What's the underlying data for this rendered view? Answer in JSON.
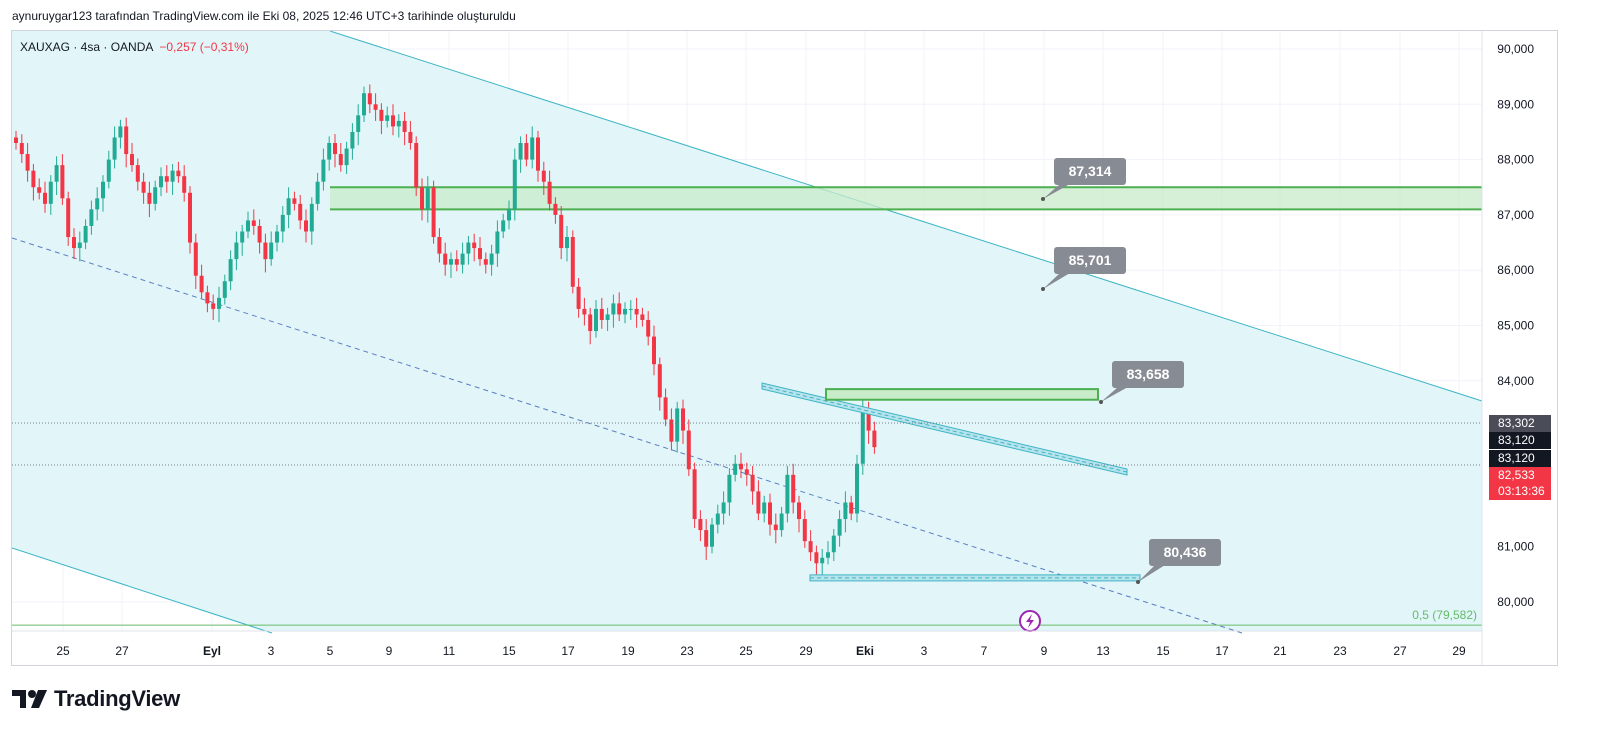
{
  "caption": "aynuruygar123 tarafından TradingView.com ile Eki 08, 2025 12:46 UTC+3 tarihinde oluşturuldu",
  "legend": {
    "symbol": "XAUXAG · 4sa · OANDA",
    "change": "−0,257 (−0,31%)"
  },
  "brand": {
    "name": "TradingView",
    "logo": "tradingview-logo-icon"
  },
  "colors": {
    "up": "#22ab94",
    "down": "#f23645",
    "channel_fill": "#e2f6f9",
    "channel_line": "#3cb4c4",
    "zone": "#4caf50",
    "callout": "#878b94"
  },
  "price_labels": [
    {
      "text": "83,302",
      "bg": "#4a4d57"
    },
    {
      "text": "83,120",
      "bg": "#131722"
    },
    {
      "text": "83,120",
      "bg": "#131722"
    },
    {
      "text": "82,533",
      "bg": "#f23645"
    },
    {
      "text": "03:13:36",
      "bg": "#f23645"
    }
  ],
  "callouts": [
    "87,314",
    "85,701",
    "83,658",
    "80,436"
  ],
  "fib_label": "0,5 (79,582)",
  "chart_data": {
    "type": "candlestick",
    "symbol": "XAUXAG",
    "timeframe": "4sa",
    "source": "OANDA",
    "ylim": [
      79.5,
      90.2
    ],
    "y_ticks": [
      "80,000",
      "81,000",
      "83,000",
      "84,000",
      "85,000",
      "86,000",
      "87,000",
      "88,000",
      "89,000",
      "90,000"
    ],
    "x_ticks": [
      "25",
      "27",
      "Eyl",
      "3",
      "5",
      "9",
      "11",
      "15",
      "17",
      "19",
      "23",
      "25",
      "29",
      "Eki",
      "3",
      "7",
      "9",
      "13",
      "15",
      "17",
      "21",
      "23",
      "27",
      "29"
    ],
    "last_price": 82.533,
    "series": [
      {
        "closes": [
          88.3,
          88.1,
          87.8,
          87.5,
          87.4,
          87.2,
          87.6,
          87.9,
          87.3,
          86.6,
          86.4,
          86.5,
          86.8,
          87.1,
          87.3,
          87.6,
          88.0,
          88.4,
          88.6,
          88.1,
          87.9,
          87.6,
          87.4,
          87.2,
          87.5,
          87.7,
          87.6,
          87.8,
          87.7,
          87.4,
          86.5,
          85.9,
          85.6,
          85.4,
          85.3,
          85.5,
          85.8,
          86.2,
          86.5,
          86.7,
          86.9,
          86.8,
          86.5,
          86.2,
          86.5,
          86.7,
          87.0,
          87.3,
          87.2,
          86.9,
          86.7,
          87.2,
          87.6,
          88.0,
          88.3,
          88.1,
          87.9,
          88.2,
          88.5,
          88.8,
          89.2,
          89.0,
          88.9,
          88.7,
          88.8,
          88.6,
          88.7,
          88.5,
          88.3,
          87.5,
          87.1,
          87.5,
          86.6,
          86.3,
          86.1,
          86.2,
          86.1,
          86.3,
          86.5,
          86.4,
          86.2,
          86.1,
          86.3,
          86.7,
          86.9,
          87.1,
          88.0,
          88.3,
          88.0,
          88.4,
          87.8,
          87.6,
          87.2,
          87.0,
          86.4,
          86.6,
          85.7,
          85.3,
          85.2,
          84.9,
          85.3,
          85.1,
          85.2,
          85.4,
          85.2,
          85.3,
          85.3,
          85.2,
          85.1,
          84.8,
          84.3,
          83.7,
          83.3,
          82.9,
          83.5,
          83.1,
          82.4,
          81.5,
          81.3,
          81.0,
          81.4,
          81.6,
          81.8,
          82.3,
          82.5,
          82.4,
          82.3,
          82.0,
          81.6,
          81.8,
          81.4,
          81.3,
          81.6,
          82.3,
          81.8,
          81.5,
          81.1,
          80.9,
          80.7,
          80.8,
          80.9,
          81.2,
          81.5,
          81.8,
          81.6,
          82.5,
          83.5,
          83.1,
          82.8
        ]
      }
    ],
    "annotations": {
      "resistance_zone": [
        87.1,
        87.5
      ],
      "resistance_box": [
        83.658,
        83.85
      ],
      "support_line": 80.436,
      "fib_level": 79.582
    }
  }
}
